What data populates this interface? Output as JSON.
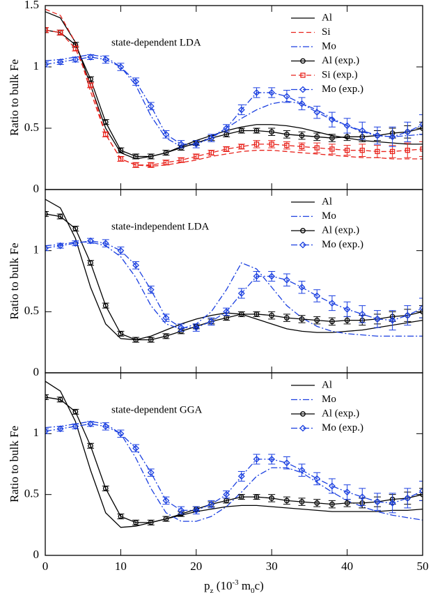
{
  "chart_data": [
    {
      "type": "line",
      "annotation": "state-dependent LDA",
      "ylabel": "Ratio to bulk Fe",
      "x": [
        0,
        2,
        4,
        6,
        8,
        10,
        12,
        14,
        16,
        18,
        20,
        22,
        24,
        26,
        28,
        30,
        32,
        34,
        36,
        38,
        40,
        42,
        44,
        46,
        48,
        50
      ],
      "xlim": [
        0,
        50
      ],
      "xticks": [
        0,
        10,
        20,
        30,
        40,
        50
      ],
      "ylim": [
        0,
        1.5
      ],
      "yticks": [
        0,
        0.5,
        1,
        1.5
      ],
      "legend": "upper right",
      "series": [
        {
          "name": "Al",
          "color": "#000000",
          "dash": "solid",
          "values": [
            1.45,
            1.4,
            1.2,
            0.85,
            0.5,
            0.3,
            0.25,
            0.27,
            0.3,
            0.35,
            0.4,
            0.44,
            0.48,
            0.51,
            0.53,
            0.53,
            0.52,
            0.5,
            0.47,
            0.44,
            0.42,
            0.4,
            0.39,
            0.38,
            0.37,
            0.37
          ]
        },
        {
          "name": "Si",
          "color": "#e8221b",
          "dash": "dashed",
          "values": [
            1.47,
            1.42,
            1.2,
            0.8,
            0.45,
            0.25,
            0.2,
            0.19,
            0.2,
            0.22,
            0.24,
            0.27,
            0.29,
            0.31,
            0.32,
            0.32,
            0.31,
            0.3,
            0.29,
            0.28,
            0.27,
            0.26,
            0.26,
            0.25,
            0.25,
            0.25
          ]
        },
        {
          "name": "Mo",
          "color": "#1a3fe0",
          "dash": "dashdot",
          "values": [
            1.05,
            1.06,
            1.08,
            1.1,
            1.08,
            1.0,
            0.85,
            0.6,
            0.42,
            0.35,
            0.37,
            0.43,
            0.5,
            0.58,
            0.65,
            0.7,
            0.72,
            0.7,
            0.65,
            0.58,
            0.52,
            0.47,
            0.44,
            0.43,
            0.44,
            0.45
          ]
        },
        {
          "name": "Al (exp.)",
          "color": "#000000",
          "dash": "solid",
          "marker": "circle",
          "values": [
            1.3,
            1.28,
            1.18,
            0.9,
            0.55,
            0.32,
            0.27,
            0.27,
            0.3,
            0.34,
            0.38,
            0.42,
            0.45,
            0.48,
            0.48,
            0.47,
            0.45,
            0.44,
            0.43,
            0.42,
            0.43,
            0.43,
            0.44,
            0.46,
            0.47,
            0.5
          ],
          "errors": [
            0.02,
            0.02,
            0.02,
            0.02,
            0.02,
            0.02,
            0.02,
            0.02,
            0.02,
            0.02,
            0.02,
            0.02,
            0.02,
            0.02,
            0.02,
            0.03,
            0.03,
            0.03,
            0.03,
            0.03,
            0.03,
            0.04,
            0.04,
            0.04,
            0.05,
            0.05
          ]
        },
        {
          "name": "Si (exp.)",
          "color": "#e8221b",
          "dash": "dashed",
          "marker": "square",
          "values": [
            1.3,
            1.28,
            1.15,
            0.85,
            0.45,
            0.25,
            0.2,
            0.2,
            0.22,
            0.24,
            0.27,
            0.3,
            0.33,
            0.35,
            0.37,
            0.37,
            0.36,
            0.35,
            0.34,
            0.33,
            0.32,
            0.32,
            0.31,
            0.31,
            0.32,
            0.33
          ],
          "errors": [
            0.02,
            0.02,
            0.02,
            0.02,
            0.02,
            0.02,
            0.02,
            0.02,
            0.02,
            0.02,
            0.02,
            0.02,
            0.02,
            0.02,
            0.03,
            0.03,
            0.03,
            0.03,
            0.04,
            0.04,
            0.04,
            0.05,
            0.05,
            0.05,
            0.06,
            0.06
          ]
        },
        {
          "name": "Mo (exp.)",
          "color": "#1a3fe0",
          "dash": "dashdot",
          "marker": "diamond",
          "values": [
            1.02,
            1.04,
            1.06,
            1.08,
            1.06,
            1.0,
            0.88,
            0.68,
            0.45,
            0.37,
            0.37,
            0.42,
            0.5,
            0.65,
            0.79,
            0.79,
            0.76,
            0.7,
            0.63,
            0.57,
            0.52,
            0.48,
            0.44,
            0.43,
            0.47,
            0.53
          ],
          "errors": [
            0.02,
            0.02,
            0.02,
            0.02,
            0.03,
            0.03,
            0.03,
            0.03,
            0.03,
            0.03,
            0.03,
            0.03,
            0.03,
            0.04,
            0.04,
            0.04,
            0.05,
            0.05,
            0.05,
            0.06,
            0.06,
            0.07,
            0.07,
            0.08,
            0.08,
            0.08
          ]
        }
      ]
    },
    {
      "type": "line",
      "annotation": "state-independent LDA",
      "ylabel": "Ratio to bulk Fe",
      "x": [
        0,
        2,
        4,
        6,
        8,
        10,
        12,
        14,
        16,
        18,
        20,
        22,
        24,
        26,
        28,
        30,
        32,
        34,
        36,
        38,
        40,
        42,
        44,
        46,
        48,
        50
      ],
      "xlim": [
        0,
        50
      ],
      "xticks": [
        0,
        10,
        20,
        30,
        40,
        50
      ],
      "ylim": [
        0,
        1.5
      ],
      "yticks": [
        0,
        0.5,
        1
      ],
      "legend": "upper right",
      "series": [
        {
          "name": "Al",
          "color": "#000000",
          "dash": "solid",
          "values": [
            1.42,
            1.35,
            1.1,
            0.7,
            0.4,
            0.28,
            0.27,
            0.3,
            0.35,
            0.4,
            0.44,
            0.47,
            0.49,
            0.48,
            0.44,
            0.4,
            0.36,
            0.34,
            0.33,
            0.33,
            0.34,
            0.35,
            0.37,
            0.39,
            0.41,
            0.43
          ]
        },
        {
          "name": "Mo",
          "color": "#1a3fe0",
          "dash": "dashdot",
          "values": [
            1.04,
            1.05,
            1.07,
            1.07,
            1.04,
            0.95,
            0.78,
            0.55,
            0.4,
            0.36,
            0.4,
            0.5,
            0.68,
            0.9,
            0.85,
            0.7,
            0.55,
            0.45,
            0.38,
            0.34,
            0.32,
            0.31,
            0.3,
            0.3,
            0.3,
            0.3
          ]
        },
        {
          "name": "Al (exp.)",
          "color": "#000000",
          "dash": "solid",
          "marker": "circle",
          "values": [
            1.3,
            1.28,
            1.18,
            0.9,
            0.55,
            0.32,
            0.27,
            0.27,
            0.3,
            0.34,
            0.38,
            0.42,
            0.45,
            0.48,
            0.48,
            0.47,
            0.45,
            0.44,
            0.43,
            0.42,
            0.43,
            0.43,
            0.44,
            0.46,
            0.47,
            0.5
          ],
          "errors": [
            0.02,
            0.02,
            0.02,
            0.02,
            0.02,
            0.02,
            0.02,
            0.02,
            0.02,
            0.02,
            0.02,
            0.02,
            0.02,
            0.02,
            0.02,
            0.03,
            0.03,
            0.03,
            0.03,
            0.03,
            0.03,
            0.04,
            0.04,
            0.04,
            0.05,
            0.05
          ]
        },
        {
          "name": "Mo (exp.)",
          "color": "#1a3fe0",
          "dash": "dashdot",
          "marker": "diamond",
          "values": [
            1.02,
            1.04,
            1.06,
            1.08,
            1.06,
            1.0,
            0.88,
            0.68,
            0.45,
            0.37,
            0.37,
            0.42,
            0.5,
            0.65,
            0.79,
            0.79,
            0.76,
            0.7,
            0.63,
            0.57,
            0.52,
            0.48,
            0.44,
            0.43,
            0.47,
            0.53
          ],
          "errors": [
            0.02,
            0.02,
            0.02,
            0.02,
            0.03,
            0.03,
            0.03,
            0.03,
            0.03,
            0.03,
            0.03,
            0.03,
            0.03,
            0.04,
            0.04,
            0.04,
            0.05,
            0.05,
            0.05,
            0.06,
            0.06,
            0.07,
            0.07,
            0.08,
            0.08,
            0.08
          ]
        }
      ]
    },
    {
      "type": "line",
      "annotation": "state-dependent GGA",
      "ylabel": "Ratio to bulk Fe",
      "xlabel": [
        "p",
        "z",
        " (10",
        "-3",
        " m",
        "0",
        "c)"
      ],
      "x": [
        0,
        2,
        4,
        6,
        8,
        10,
        12,
        14,
        16,
        18,
        20,
        22,
        24,
        26,
        28,
        30,
        32,
        34,
        36,
        38,
        40,
        42,
        44,
        46,
        48,
        50
      ],
      "xlim": [
        0,
        50
      ],
      "xticks": [
        0,
        10,
        20,
        30,
        40,
        50
      ],
      "ylim": [
        0,
        1.5
      ],
      "yticks": [
        0,
        0.5,
        1
      ],
      "legend": "upper right",
      "series": [
        {
          "name": "Al",
          "color": "#000000",
          "dash": "solid",
          "values": [
            1.43,
            1.35,
            1.1,
            0.7,
            0.35,
            0.23,
            0.24,
            0.27,
            0.3,
            0.33,
            0.36,
            0.38,
            0.4,
            0.41,
            0.41,
            0.4,
            0.39,
            0.38,
            0.37,
            0.36,
            0.36,
            0.36,
            0.36,
            0.37,
            0.37,
            0.38
          ]
        },
        {
          "name": "Mo",
          "color": "#1a3fe0",
          "dash": "dashdot",
          "values": [
            1.05,
            1.06,
            1.08,
            1.1,
            1.08,
            1.0,
            0.8,
            0.55,
            0.35,
            0.28,
            0.28,
            0.32,
            0.4,
            0.52,
            0.65,
            0.72,
            0.72,
            0.68,
            0.6,
            0.52,
            0.45,
            0.4,
            0.36,
            0.33,
            0.31,
            0.29
          ]
        },
        {
          "name": "Al (exp.)",
          "color": "#000000",
          "dash": "solid",
          "marker": "circle",
          "values": [
            1.3,
            1.28,
            1.18,
            0.9,
            0.55,
            0.32,
            0.27,
            0.27,
            0.3,
            0.34,
            0.38,
            0.42,
            0.45,
            0.48,
            0.48,
            0.47,
            0.45,
            0.44,
            0.43,
            0.42,
            0.43,
            0.43,
            0.44,
            0.46,
            0.47,
            0.5
          ],
          "errors": [
            0.02,
            0.02,
            0.02,
            0.02,
            0.02,
            0.02,
            0.02,
            0.02,
            0.02,
            0.02,
            0.02,
            0.02,
            0.02,
            0.02,
            0.02,
            0.03,
            0.03,
            0.03,
            0.03,
            0.03,
            0.03,
            0.04,
            0.04,
            0.04,
            0.05,
            0.05
          ]
        },
        {
          "name": "Mo (exp.)",
          "color": "#1a3fe0",
          "dash": "dashdot",
          "marker": "diamond",
          "values": [
            1.02,
            1.04,
            1.06,
            1.08,
            1.06,
            1.0,
            0.88,
            0.68,
            0.45,
            0.37,
            0.37,
            0.42,
            0.5,
            0.65,
            0.79,
            0.79,
            0.76,
            0.7,
            0.63,
            0.57,
            0.52,
            0.48,
            0.44,
            0.43,
            0.47,
            0.53
          ],
          "errors": [
            0.02,
            0.02,
            0.02,
            0.02,
            0.03,
            0.03,
            0.03,
            0.03,
            0.03,
            0.03,
            0.03,
            0.03,
            0.03,
            0.04,
            0.04,
            0.04,
            0.05,
            0.05,
            0.05,
            0.06,
            0.06,
            0.07,
            0.07,
            0.08,
            0.08,
            0.08
          ]
        }
      ]
    }
  ]
}
